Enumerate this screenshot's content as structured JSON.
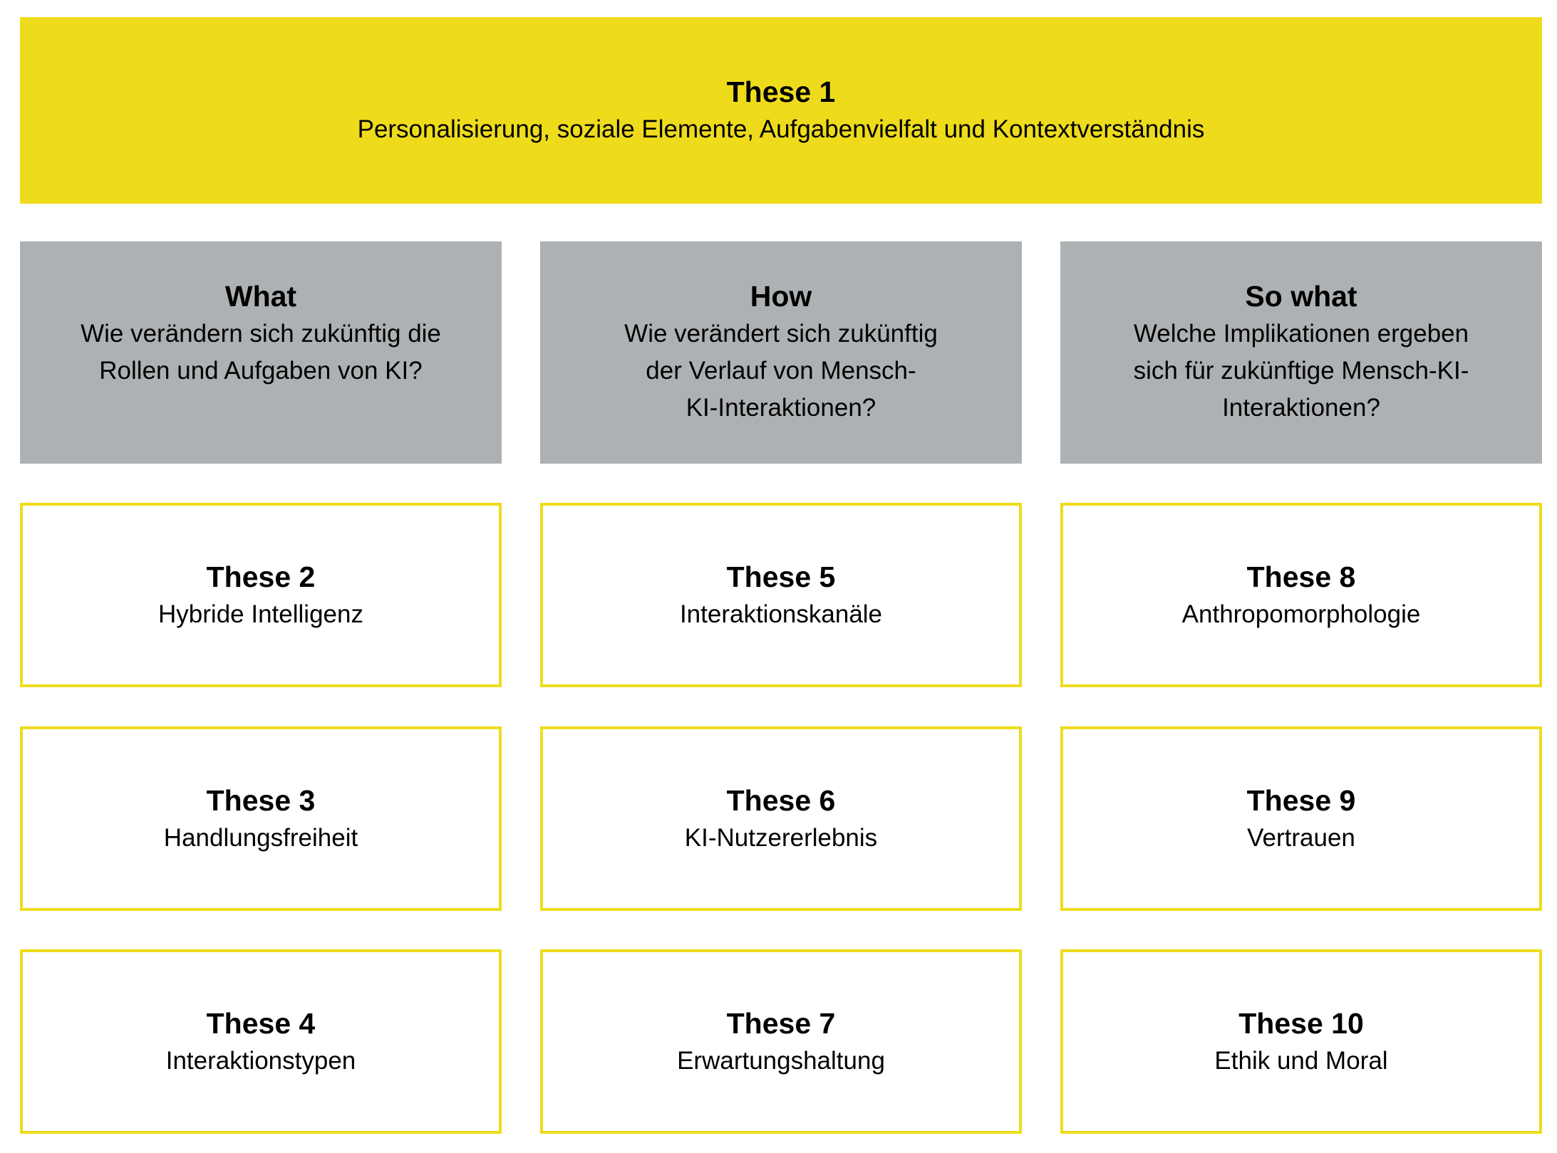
{
  "colors": {
    "accent_yellow": "#EEDC1C",
    "header_gray": "#AEB1B3"
  },
  "banner": {
    "title": "These 1",
    "subtitle": "Personalisierung, soziale Elemente, Aufgabenvielfalt und Kontextverständnis"
  },
  "columns": [
    {
      "title": "What",
      "question": "Wie verändern sich zukünftig die\nRollen und Aufgaben von KI?"
    },
    {
      "title": "How",
      "question": "Wie verändert sich zukünftig\nder Verlauf von Mensch-\nKI-Interaktionen?"
    },
    {
      "title": "So what",
      "question": "Welche Implikationen ergeben\nsich für zukünftige Mensch-KI-\nInteraktionen?"
    }
  ],
  "theses": [
    {
      "title": "These 2",
      "label": "Hybride Intelligenz"
    },
    {
      "title": "These 3",
      "label": "Handlungsfreiheit"
    },
    {
      "title": "These 4",
      "label": "Interaktionstypen"
    },
    {
      "title": "These 5",
      "label": "Interaktionskanäle"
    },
    {
      "title": "These 6",
      "label": "KI-Nutzererlebnis"
    },
    {
      "title": "These 7",
      "label": "Erwartungshaltung"
    },
    {
      "title": "These 8",
      "label": "Anthropomorphologie"
    },
    {
      "title": "These 9",
      "label": "Vertrauen"
    },
    {
      "title": "These 10",
      "label": "Ethik und Moral"
    }
  ]
}
